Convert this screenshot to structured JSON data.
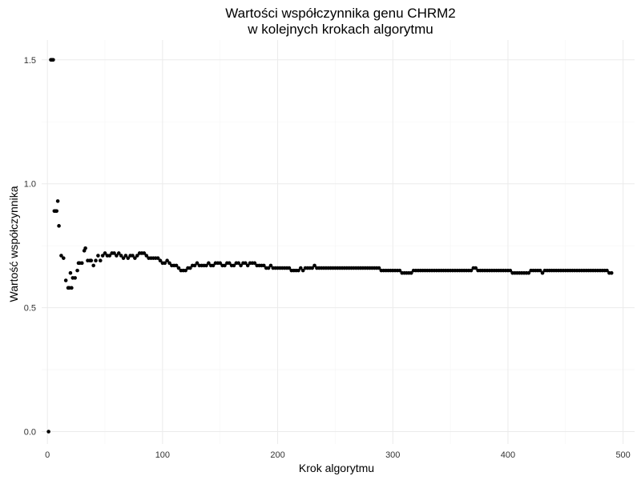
{
  "chart_data": {
    "type": "scatter",
    "title_lines": [
      "Wartości współczynnika genu CHRM2",
      "w kolejnych krokach algorytmu"
    ],
    "xlabel": "Krok algorytmu",
    "ylabel": "Wartość współczynnika",
    "xlim": [
      -5,
      510
    ],
    "ylim": [
      -0.05,
      1.58
    ],
    "x_ticks": [
      0,
      100,
      200,
      300,
      400,
      500
    ],
    "y_ticks": [
      0.0,
      0.5,
      1.0,
      1.5
    ],
    "x_tick_labels": [
      "0",
      "100",
      "200",
      "300",
      "400",
      "500"
    ],
    "y_tick_labels": [
      "0.0",
      "0.5",
      "1.0",
      "1.5"
    ],
    "grid": true,
    "point_color": "#000000",
    "points": [
      [
        1,
        0.0
      ],
      [
        3,
        1.5
      ],
      [
        4,
        1.5
      ],
      [
        5,
        1.5
      ],
      [
        6,
        0.89
      ],
      [
        7,
        0.89
      ],
      [
        8,
        0.89
      ],
      [
        9,
        0.93
      ],
      [
        10,
        0.83
      ],
      [
        12,
        0.71
      ],
      [
        14,
        0.7
      ],
      [
        16,
        0.61
      ],
      [
        18,
        0.58
      ],
      [
        19,
        0.58
      ],
      [
        20,
        0.64
      ],
      [
        21,
        0.58
      ],
      [
        22,
        0.62
      ],
      [
        24,
        0.62
      ],
      [
        26,
        0.65
      ],
      [
        27,
        0.68
      ],
      [
        28,
        0.68
      ],
      [
        30,
        0.68
      ],
      [
        32,
        0.73
      ],
      [
        33,
        0.74
      ],
      [
        35,
        0.69
      ],
      [
        37,
        0.69
      ],
      [
        38,
        0.69
      ],
      [
        40,
        0.67
      ],
      [
        42,
        0.69
      ],
      [
        44,
        0.71
      ],
      [
        46,
        0.69
      ],
      [
        48,
        0.71
      ],
      [
        50,
        0.72
      ],
      [
        52,
        0.71
      ],
      [
        54,
        0.71
      ],
      [
        56,
        0.72
      ],
      [
        58,
        0.72
      ],
      [
        60,
        0.71
      ],
      [
        62,
        0.72
      ],
      [
        64,
        0.71
      ],
      [
        66,
        0.7
      ],
      [
        68,
        0.71
      ],
      [
        70,
        0.7
      ],
      [
        72,
        0.71
      ],
      [
        74,
        0.71
      ],
      [
        76,
        0.7
      ],
      [
        78,
        0.71
      ],
      [
        80,
        0.72
      ],
      [
        82,
        0.72
      ],
      [
        84,
        0.72
      ],
      [
        86,
        0.71
      ],
      [
        88,
        0.7
      ],
      [
        90,
        0.7
      ],
      [
        92,
        0.7
      ],
      [
        94,
        0.7
      ],
      [
        96,
        0.7
      ],
      [
        98,
        0.69
      ],
      [
        100,
        0.68
      ],
      [
        102,
        0.68
      ],
      [
        104,
        0.69
      ],
      [
        106,
        0.68
      ],
      [
        108,
        0.67
      ],
      [
        110,
        0.67
      ],
      [
        112,
        0.67
      ],
      [
        114,
        0.66
      ],
      [
        116,
        0.65
      ],
      [
        118,
        0.65
      ],
      [
        120,
        0.65
      ],
      [
        122,
        0.66
      ],
      [
        124,
        0.66
      ],
      [
        126,
        0.67
      ],
      [
        128,
        0.67
      ],
      [
        130,
        0.68
      ],
      [
        132,
        0.67
      ],
      [
        134,
        0.67
      ],
      [
        136,
        0.67
      ],
      [
        138,
        0.67
      ],
      [
        140,
        0.68
      ],
      [
        142,
        0.67
      ],
      [
        144,
        0.67
      ],
      [
        146,
        0.68
      ],
      [
        148,
        0.68
      ],
      [
        150,
        0.68
      ],
      [
        152,
        0.67
      ],
      [
        154,
        0.67
      ],
      [
        156,
        0.68
      ],
      [
        158,
        0.68
      ],
      [
        160,
        0.67
      ],
      [
        162,
        0.67
      ],
      [
        164,
        0.68
      ],
      [
        166,
        0.68
      ],
      [
        168,
        0.67
      ],
      [
        170,
        0.68
      ],
      [
        172,
        0.68
      ],
      [
        174,
        0.67
      ],
      [
        176,
        0.68
      ],
      [
        178,
        0.68
      ],
      [
        180,
        0.68
      ],
      [
        182,
        0.67
      ],
      [
        184,
        0.67
      ],
      [
        186,
        0.67
      ],
      [
        188,
        0.67
      ],
      [
        190,
        0.66
      ],
      [
        192,
        0.66
      ],
      [
        194,
        0.67
      ],
      [
        196,
        0.66
      ],
      [
        198,
        0.66
      ],
      [
        200,
        0.66
      ],
      [
        202,
        0.66
      ],
      [
        204,
        0.66
      ],
      [
        206,
        0.66
      ],
      [
        208,
        0.66
      ],
      [
        210,
        0.66
      ],
      [
        212,
        0.65
      ],
      [
        214,
        0.65
      ],
      [
        216,
        0.65
      ],
      [
        218,
        0.65
      ],
      [
        220,
        0.66
      ],
      [
        222,
        0.65
      ],
      [
        224,
        0.66
      ],
      [
        226,
        0.66
      ],
      [
        228,
        0.66
      ],
      [
        230,
        0.66
      ],
      [
        232,
        0.67
      ],
      [
        234,
        0.66
      ],
      [
        236,
        0.66
      ],
      [
        238,
        0.66
      ],
      [
        240,
        0.66
      ],
      [
        242,
        0.66
      ],
      [
        244,
        0.66
      ],
      [
        246,
        0.66
      ],
      [
        248,
        0.66
      ],
      [
        250,
        0.66
      ],
      [
        252,
        0.66
      ],
      [
        254,
        0.66
      ],
      [
        256,
        0.66
      ],
      [
        258,
        0.66
      ],
      [
        260,
        0.66
      ],
      [
        262,
        0.66
      ],
      [
        264,
        0.66
      ],
      [
        266,
        0.66
      ],
      [
        268,
        0.66
      ],
      [
        270,
        0.66
      ],
      [
        272,
        0.66
      ],
      [
        274,
        0.66
      ],
      [
        276,
        0.66
      ],
      [
        278,
        0.66
      ],
      [
        280,
        0.66
      ],
      [
        282,
        0.66
      ],
      [
        284,
        0.66
      ],
      [
        286,
        0.66
      ],
      [
        288,
        0.66
      ],
      [
        290,
        0.65
      ],
      [
        292,
        0.65
      ],
      [
        294,
        0.65
      ],
      [
        296,
        0.65
      ],
      [
        298,
        0.65
      ],
      [
        300,
        0.65
      ],
      [
        302,
        0.65
      ],
      [
        304,
        0.65
      ],
      [
        306,
        0.65
      ],
      [
        308,
        0.64
      ],
      [
        310,
        0.64
      ],
      [
        312,
        0.64
      ],
      [
        314,
        0.64
      ],
      [
        316,
        0.64
      ],
      [
        318,
        0.65
      ],
      [
        320,
        0.65
      ],
      [
        322,
        0.65
      ],
      [
        324,
        0.65
      ],
      [
        326,
        0.65
      ],
      [
        328,
        0.65
      ],
      [
        330,
        0.65
      ],
      [
        332,
        0.65
      ],
      [
        334,
        0.65
      ],
      [
        336,
        0.65
      ],
      [
        338,
        0.65
      ],
      [
        340,
        0.65
      ],
      [
        342,
        0.65
      ],
      [
        344,
        0.65
      ],
      [
        346,
        0.65
      ],
      [
        348,
        0.65
      ],
      [
        350,
        0.65
      ],
      [
        352,
        0.65
      ],
      [
        354,
        0.65
      ],
      [
        356,
        0.65
      ],
      [
        358,
        0.65
      ],
      [
        360,
        0.65
      ],
      [
        362,
        0.65
      ],
      [
        364,
        0.65
      ],
      [
        366,
        0.65
      ],
      [
        368,
        0.65
      ],
      [
        370,
        0.66
      ],
      [
        372,
        0.66
      ],
      [
        374,
        0.65
      ],
      [
        376,
        0.65
      ],
      [
        378,
        0.65
      ],
      [
        380,
        0.65
      ],
      [
        382,
        0.65
      ],
      [
        384,
        0.65
      ],
      [
        386,
        0.65
      ],
      [
        388,
        0.65
      ],
      [
        390,
        0.65
      ],
      [
        392,
        0.65
      ],
      [
        394,
        0.65
      ],
      [
        396,
        0.65
      ],
      [
        398,
        0.65
      ],
      [
        400,
        0.65
      ],
      [
        402,
        0.65
      ],
      [
        404,
        0.64
      ],
      [
        406,
        0.64
      ],
      [
        408,
        0.64
      ],
      [
        410,
        0.64
      ],
      [
        412,
        0.64
      ],
      [
        414,
        0.64
      ],
      [
        416,
        0.64
      ],
      [
        418,
        0.64
      ],
      [
        420,
        0.65
      ],
      [
        422,
        0.65
      ],
      [
        424,
        0.65
      ],
      [
        426,
        0.65
      ],
      [
        428,
        0.65
      ],
      [
        430,
        0.64
      ],
      [
        432,
        0.65
      ],
      [
        434,
        0.65
      ],
      [
        436,
        0.65
      ],
      [
        438,
        0.65
      ],
      [
        440,
        0.65
      ],
      [
        442,
        0.65
      ],
      [
        444,
        0.65
      ],
      [
        446,
        0.65
      ],
      [
        448,
        0.65
      ],
      [
        450,
        0.65
      ],
      [
        452,
        0.65
      ],
      [
        454,
        0.65
      ],
      [
        456,
        0.65
      ],
      [
        458,
        0.65
      ],
      [
        460,
        0.65
      ],
      [
        462,
        0.65
      ],
      [
        464,
        0.65
      ],
      [
        466,
        0.65
      ],
      [
        468,
        0.65
      ],
      [
        470,
        0.65
      ],
      [
        472,
        0.65
      ],
      [
        474,
        0.65
      ],
      [
        476,
        0.65
      ],
      [
        478,
        0.65
      ],
      [
        480,
        0.65
      ],
      [
        482,
        0.65
      ],
      [
        484,
        0.65
      ],
      [
        486,
        0.65
      ],
      [
        488,
        0.64
      ],
      [
        490,
        0.64
      ]
    ]
  }
}
